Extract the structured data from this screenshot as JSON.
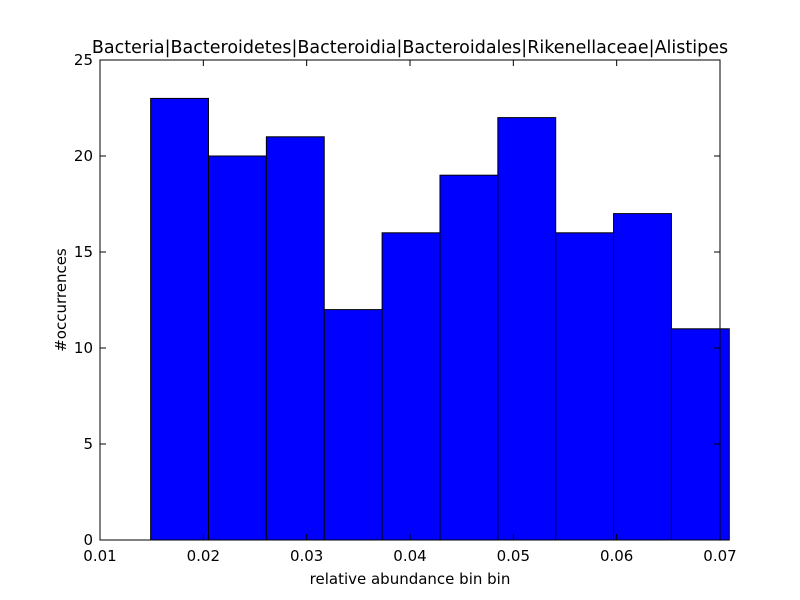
{
  "chart_data": {
    "type": "bar",
    "title": "Bacteria|Bacteroidetes|Bacteroidia|Bacteroidales|Rikenellaceae|Alistipes",
    "xlabel": "relative abundance bin bin",
    "ylabel": "#occurrences",
    "xlim": [
      0.01,
      0.07
    ],
    "ylim": [
      0,
      25
    ],
    "xticks": [
      0.01,
      0.02,
      0.03,
      0.04,
      0.05,
      0.06,
      0.07
    ],
    "xtick_labels": [
      "0.01",
      "0.02",
      "0.03",
      "0.04",
      "0.05",
      "0.06",
      "0.07"
    ],
    "yticks": [
      0,
      5,
      10,
      15,
      20,
      25
    ],
    "ytick_labels": [
      "0",
      "5",
      "10",
      "15",
      "20",
      "25"
    ],
    "bin_edges": [
      0.0149,
      0.0205,
      0.0261,
      0.0317,
      0.0373,
      0.0429,
      0.0485,
      0.0541,
      0.0597,
      0.0653,
      0.0709
    ],
    "values": [
      23,
      20,
      21,
      12,
      16,
      19,
      22,
      16,
      17,
      11
    ],
    "bar_color": "#0000ff",
    "edge_color": "#000000",
    "grid": false,
    "legend": "none"
  }
}
